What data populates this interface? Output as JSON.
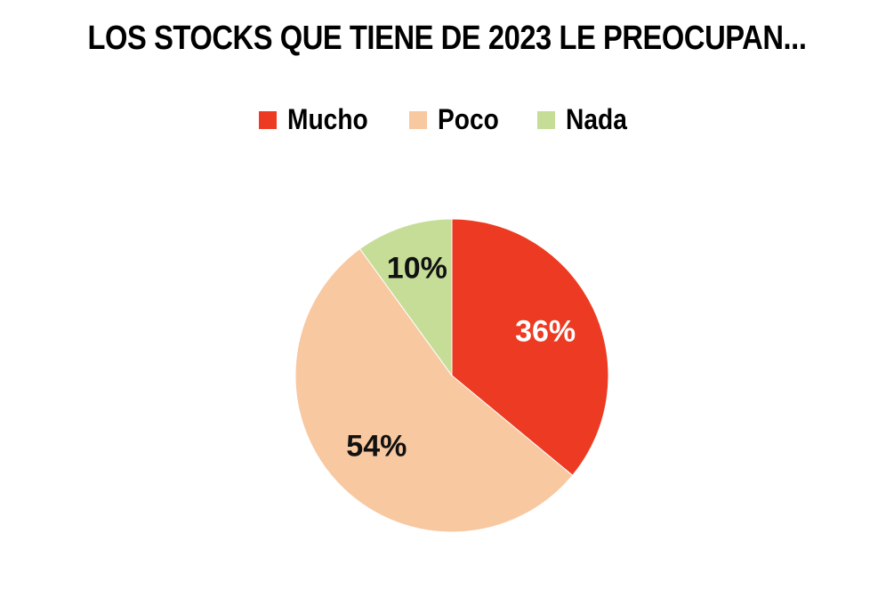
{
  "chart_data": {
    "type": "pie",
    "title": "LOS STOCKS QUE TIENE DE 2023 LE PREOCUPAN...",
    "legend_position": "top",
    "start_angle_deg": 0,
    "direction": "clockwise",
    "slices": [
      {
        "name": "Mucho",
        "value": 36,
        "label": "36%",
        "color": "#ec3b22",
        "label_color": "#ffffff"
      },
      {
        "name": "Poco",
        "value": 54,
        "label": "54%",
        "color": "#f8c8a0",
        "label_color": "#111111"
      },
      {
        "name": "Nada",
        "value": 10,
        "label": "10%",
        "color": "#c6dd98",
        "label_color": "#111111"
      }
    ]
  }
}
